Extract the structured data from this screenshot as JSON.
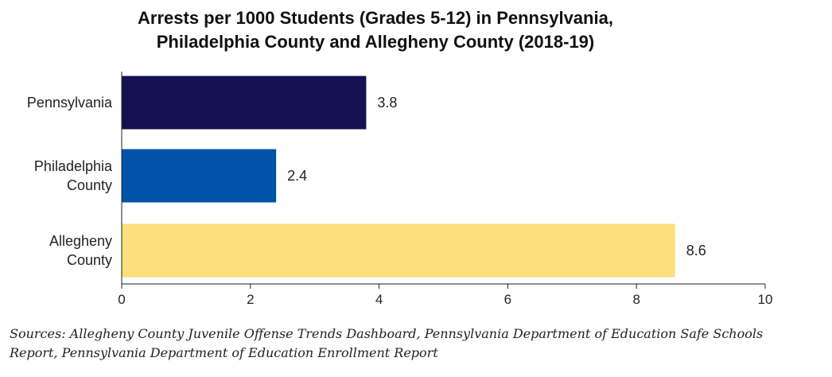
{
  "chart_data": {
    "type": "bar",
    "orientation": "horizontal",
    "title_lines": [
      "Arrests per 1000 Students (Grades 5-12) in Pennsylvania,",
      "Philadelphia County and Allegheny County (2018-19)"
    ],
    "categories": [
      [
        "Pennsylvania"
      ],
      [
        "Philadelphia",
        "County"
      ],
      [
        "Allegheny",
        "County"
      ]
    ],
    "values": [
      3.8,
      2.4,
      8.6
    ],
    "value_labels": [
      "3.8",
      "2.4",
      "8.6"
    ],
    "colors": [
      "#141251",
      "#0053a8",
      "#fcdf78"
    ],
    "xlim": [
      0,
      10
    ],
    "xticks": [
      0,
      2,
      4,
      6,
      8,
      10
    ],
    "xtick_labels": [
      "0",
      "2",
      "4",
      "6",
      "8",
      "10"
    ],
    "grid": false,
    "legend": "none"
  },
  "sources": [
    "Sources: Allegheny County Juvenile Offense Trends Dashboard, Pennsylvania Department of Education Safe Schools",
    "Report, Pennsylvania Department of Education Enrollment Report"
  ]
}
